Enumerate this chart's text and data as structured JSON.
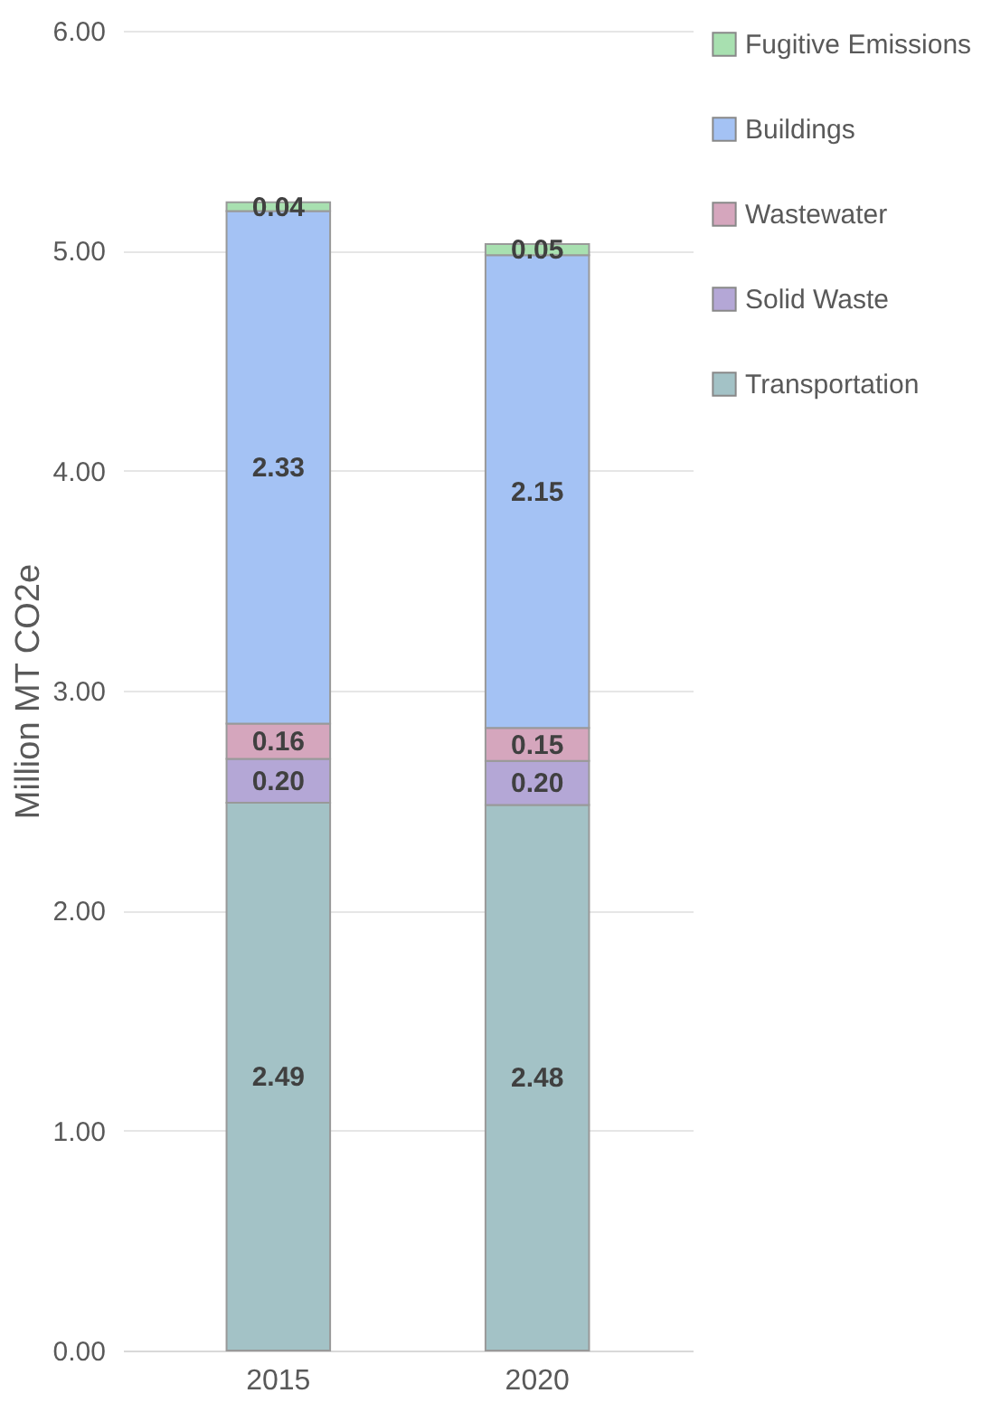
{
  "chart_data": {
    "type": "bar",
    "stacked": true,
    "categories": [
      "2015",
      "2020"
    ],
    "ylabel": "Million MT CO2e",
    "ylim": [
      0,
      6
    ],
    "yticks": [
      {
        "value": 0,
        "label": "0.00"
      },
      {
        "value": 1,
        "label": "1.00"
      },
      {
        "value": 2,
        "label": "2.00"
      },
      {
        "value": 3,
        "label": "3.00"
      },
      {
        "value": 4,
        "label": "4.00"
      },
      {
        "value": 5,
        "label": "5.00"
      },
      {
        "value": 6,
        "label": "6.00"
      }
    ],
    "grid": "y",
    "legend": "right",
    "series": [
      {
        "name": "Transportation",
        "color": "#a3c2c6",
        "values": [
          2.49,
          2.48
        ],
        "value_labels": [
          "2.49",
          "2.48"
        ]
      },
      {
        "name": "Solid Waste",
        "color": "#b4a7d6",
        "values": [
          0.2,
          0.2
        ],
        "value_labels": [
          "0.20",
          "0.20"
        ]
      },
      {
        "name": "Wastewater",
        "color": "#d5a6bd",
        "values": [
          0.16,
          0.15
        ],
        "value_labels": [
          "0.16",
          "0.15"
        ]
      },
      {
        "name": "Buildings",
        "color": "#a4c2f4",
        "values": [
          2.33,
          2.15
        ],
        "value_labels": [
          "2.33",
          "2.15"
        ]
      },
      {
        "name": "Fugitive Emissions",
        "color": "#a8e0b0",
        "values": [
          0.04,
          0.05
        ],
        "value_labels": [
          "0.04",
          "0.05"
        ]
      }
    ]
  }
}
